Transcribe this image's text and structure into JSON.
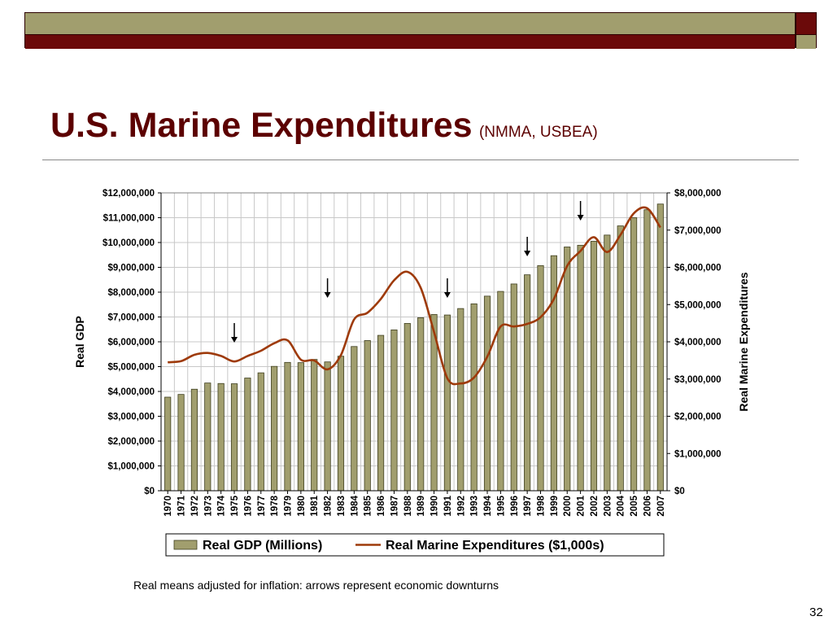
{
  "slide": {
    "title": "U.S. Marine Expenditures",
    "subtitle": "(NMMA, USBEA)",
    "caption": "Real means adjusted for inflation: arrows represent economic downturns",
    "page_number": "32"
  },
  "colors": {
    "title": "#5c0000",
    "band_olive": "#a19e6e",
    "band_maroon": "#6b0a0a",
    "bar_fill": "#a19e6e",
    "line": "#9e3a0a"
  },
  "chart_data": {
    "type": "bar",
    "categories": [
      "1970",
      "1971",
      "1972",
      "1973",
      "1974",
      "1975",
      "1976",
      "1977",
      "1978",
      "1979",
      "1980",
      "1981",
      "1982",
      "1983",
      "1984",
      "1985",
      "1986",
      "1987",
      "1988",
      "1989",
      "1990",
      "1991",
      "1992",
      "1993",
      "1994",
      "1995",
      "1996",
      "1997",
      "1998",
      "1999",
      "2000",
      "2001",
      "2002",
      "2003",
      "2004",
      "2005",
      "2006",
      "2007"
    ],
    "series": [
      {
        "name": "Real GDP (Millions)",
        "type": "bar",
        "axis": "left",
        "values": [
          3770000,
          3880000,
          4090000,
          4340000,
          4320000,
          4310000,
          4540000,
          4750000,
          5010000,
          5170000,
          5160000,
          5290000,
          5190000,
          5420000,
          5810000,
          6050000,
          6260000,
          6480000,
          6740000,
          6970000,
          7100000,
          7080000,
          7340000,
          7530000,
          7840000,
          8030000,
          8330000,
          8700000,
          9070000,
          9470000,
          9820000,
          9890000,
          10050000,
          10300000,
          10670000,
          11000000,
          11320000,
          11550000
        ]
      },
      {
        "name": "Real Marine Expenditures ($1,000s)",
        "type": "line",
        "axis": "right",
        "values": [
          3450000,
          3480000,
          3650000,
          3700000,
          3620000,
          3470000,
          3620000,
          3760000,
          3960000,
          4040000,
          3520000,
          3500000,
          3260000,
          3640000,
          4600000,
          4780000,
          5150000,
          5650000,
          5880000,
          5450000,
          4260000,
          3020000,
          2880000,
          3040000,
          3600000,
          4410000,
          4410000,
          4480000,
          4660000,
          5150000,
          6040000,
          6440000,
          6810000,
          6410000,
          6870000,
          7450000,
          7590000,
          7070000
        ]
      }
    ],
    "ylabel": "Real GDP",
    "y2label": "Real Marine Expenditures",
    "ylim": [
      0,
      12000000
    ],
    "y2lim": [
      0,
      8000000
    ],
    "yticks": [
      "$0",
      "$1,000,000",
      "$2,000,000",
      "$3,000,000",
      "$4,000,000",
      "$5,000,000",
      "$6,000,000",
      "$7,000,000",
      "$8,000,000",
      "$9,000,000",
      "$10,000,000",
      "$11,000,000",
      "$12,000,000"
    ],
    "y2ticks": [
      "$0",
      "$1,000,000",
      "$2,000,000",
      "$3,000,000",
      "$4,000,000",
      "$5,000,000",
      "$6,000,000",
      "$7,000,000",
      "$8,000,000"
    ],
    "legend_labels": [
      "Real GDP (Millions)",
      "Real Marine Expenditures ($1,000s)"
    ],
    "legend": "bottom",
    "grid": true,
    "downturn_arrows": [
      "1975",
      "1982",
      "1991",
      "1997",
      "2001"
    ]
  }
}
